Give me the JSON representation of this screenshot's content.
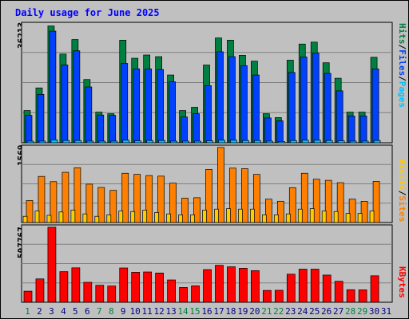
{
  "title": "Daily usage for June 2025",
  "colors": {
    "background": "#c0c0c0",
    "hits": "#008040",
    "files": "#0040ff",
    "pages": "#00c0ff",
    "visits": "#ffcc00",
    "sites": "#ff8000",
    "kbytes": "#ff0000",
    "title": "#0000ff",
    "weekend_day": "#008040",
    "weekday": "#000080"
  },
  "panels": {
    "top": {
      "max_label": "36213",
      "legend": [
        "Pages",
        "/",
        "Files",
        "/",
        "Hits"
      ]
    },
    "mid": {
      "max_label": "1569",
      "legend": [
        "Sites",
        "/",
        "Visits"
      ]
    },
    "bot": {
      "max_label": "507767",
      "legend": [
        "KBytes"
      ]
    }
  },
  "chart_data": {
    "type": "bar",
    "title": "Daily usage for June 2025",
    "categories": [
      "1",
      "2",
      "3",
      "4",
      "5",
      "6",
      "7",
      "8",
      "9",
      "10",
      "11",
      "12",
      "13",
      "14",
      "15",
      "16",
      "17",
      "18",
      "19",
      "20",
      "21",
      "22",
      "23",
      "24",
      "25",
      "26",
      "27",
      "28",
      "29",
      "30",
      "31"
    ],
    "weekend_days": [
      "1",
      "7",
      "8",
      "14",
      "15",
      "21",
      "22",
      "28",
      "29"
    ],
    "series": [
      {
        "name": "Hits",
        "panel": "top",
        "ylim": [
          0,
          36213
        ],
        "values": [
          10000,
          17000,
          36213,
          27500,
          32000,
          19600,
          9500,
          9000,
          31800,
          26200,
          27200,
          26700,
          21000,
          10000,
          11000,
          24100,
          32500,
          31800,
          27100,
          25300,
          9000,
          7800,
          25600,
          30600,
          31200,
          24800,
          20000,
          9500,
          9500,
          26500,
          null
        ]
      },
      {
        "name": "Files",
        "panel": "top",
        "ylim": [
          0,
          36213
        ],
        "values": [
          8500,
          15000,
          34600,
          24100,
          28500,
          17300,
          8600,
          8500,
          24600,
          22900,
          22900,
          22700,
          18900,
          8000,
          9000,
          17700,
          28200,
          26700,
          23900,
          21000,
          7700,
          6800,
          21800,
          26600,
          27800,
          21500,
          16100,
          8300,
          8300,
          22900,
          null
        ]
      },
      {
        "name": "Pages",
        "panel": "top",
        "ylim": [
          0,
          36213
        ],
        "values": [
          500,
          500,
          900,
          700,
          700,
          500,
          500,
          500,
          800,
          600,
          700,
          700,
          500,
          500,
          500,
          600,
          800,
          800,
          700,
          700,
          500,
          400,
          700,
          800,
          800,
          700,
          600,
          500,
          500,
          700,
          null
        ]
      },
      {
        "name": "Sites",
        "panel": "mid",
        "ylim": [
          0,
          1569
        ],
        "values": [
          460,
          964,
          854,
          1050,
          1145,
          802,
          733,
          672,
          1030,
          1007,
          982,
          970,
          823,
          509,
          519,
          1110,
          1569,
          1137,
          1126,
          1006,
          488,
          445,
          729,
          1030,
          905,
          882,
          833,
          488,
          444,
          860,
          null
        ]
      },
      {
        "name": "Visits",
        "panel": "mid",
        "ylim": [
          0,
          1569
        ],
        "values": [
          130,
          240,
          150,
          220,
          260,
          180,
          130,
          160,
          240,
          230,
          260,
          210,
          180,
          160,
          160,
          260,
          280,
          290,
          280,
          280,
          160,
          160,
          180,
          280,
          290,
          240,
          230,
          190,
          190,
          240,
          null
        ]
      },
      {
        "name": "KBytes",
        "panel": "bot",
        "ylim": [
          0,
          507767
        ],
        "values": [
          75000,
          158000,
          507767,
          207000,
          233000,
          135000,
          115000,
          110000,
          232000,
          203000,
          205000,
          198000,
          151000,
          100000,
          111000,
          221000,
          250000,
          240000,
          230000,
          214000,
          80000,
          81000,
          190000,
          224000,
          224000,
          184000,
          142000,
          85000,
          84000,
          179000,
          null
        ]
      }
    ]
  }
}
